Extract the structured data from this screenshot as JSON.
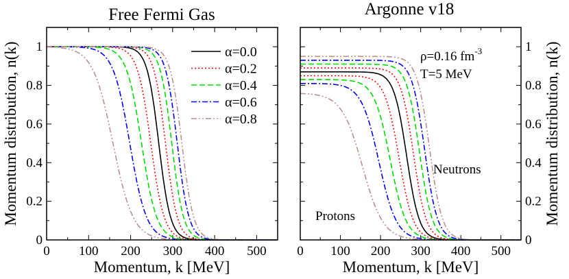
{
  "chart_data": {
    "type": "line",
    "shared": {
      "xlabel": "Momentum, k [MeV]",
      "ylabel": "Momentum distribution, n(k)",
      "xlim": [
        0,
        550
      ],
      "ylim": [
        0,
        1.1
      ],
      "xticks": [
        0,
        100,
        200,
        300,
        400,
        500
      ],
      "yticks": [
        0,
        0.2,
        0.4,
        0.6,
        0.8,
        1
      ]
    },
    "series_styles": [
      {
        "name": "α=0.0",
        "color": "#000000",
        "dash": "none"
      },
      {
        "name": "α=0.2",
        "color": "#ff0000",
        "dash": "dot"
      },
      {
        "name": "α=0.4",
        "color": "#00dd00",
        "dash": "dash"
      },
      {
        "name": "α=0.6",
        "color": "#0000ff",
        "dash": "dashdot"
      },
      {
        "name": "α=0.8",
        "color": "#bc8f8f",
        "dash": "dashdotdot"
      }
    ],
    "panels": [
      {
        "title": "Free Fermi Gas",
        "legend_position": "top-right",
        "series": [
          {
            "name": "α=0.0",
            "style": 0,
            "plateau": 1.0,
            "k_half": 267,
            "width": 14
          },
          {
            "name": "α=0.2",
            "style": 1,
            "plateau": 1.0,
            "k_half": 283,
            "width": 14
          },
          {
            "name": "α=0.2",
            "style": 1,
            "plateau": 1.0,
            "k_half": 248,
            "width": 16
          },
          {
            "name": "α=0.4",
            "style": 2,
            "plateau": 1.0,
            "k_half": 298,
            "width": 14
          },
          {
            "name": "α=0.4",
            "style": 2,
            "plateau": 1.0,
            "k_half": 226,
            "width": 18
          },
          {
            "name": "α=0.6",
            "style": 3,
            "plateau": 1.0,
            "k_half": 311,
            "width": 14
          },
          {
            "name": "α=0.6",
            "style": 3,
            "plateau": 1.0,
            "k_half": 198,
            "width": 20
          },
          {
            "name": "α=0.8",
            "style": 4,
            "plateau": 1.0,
            "k_half": 322,
            "width": 14
          },
          {
            "name": "α=0.8",
            "style": 4,
            "plateau": 1.0,
            "k_half": 158,
            "width": 24
          }
        ]
      },
      {
        "title": "Argonne v18",
        "annotations": {
          "density": "ρ=0.16 fm",
          "density_exp": "-3",
          "temperature": "T=5 MeV",
          "neutrons": "Neutrons",
          "protons": "Protons"
        },
        "series": [
          {
            "name": "α=0.0",
            "style": 0,
            "plateau": 0.87,
            "k_half": 265,
            "width": 16
          },
          {
            "name": "α=0.2",
            "style": 1,
            "plateau": 0.89,
            "k_half": 282,
            "width": 16
          },
          {
            "name": "α=0.2",
            "style": 1,
            "plateau": 0.85,
            "k_half": 246,
            "width": 18
          },
          {
            "name": "α=0.4",
            "style": 2,
            "plateau": 0.91,
            "k_half": 297,
            "width": 16
          },
          {
            "name": "α=0.4",
            "style": 2,
            "plateau": 0.83,
            "k_half": 224,
            "width": 20
          },
          {
            "name": "α=0.6",
            "style": 3,
            "plateau": 0.93,
            "k_half": 310,
            "width": 16
          },
          {
            "name": "α=0.6",
            "style": 3,
            "plateau": 0.81,
            "k_half": 196,
            "width": 22
          },
          {
            "name": "α=0.8",
            "style": 4,
            "plateau": 0.95,
            "k_half": 322,
            "width": 16
          },
          {
            "name": "α=0.8",
            "style": 4,
            "plateau": 0.76,
            "k_half": 155,
            "width": 26
          }
        ]
      }
    ]
  }
}
